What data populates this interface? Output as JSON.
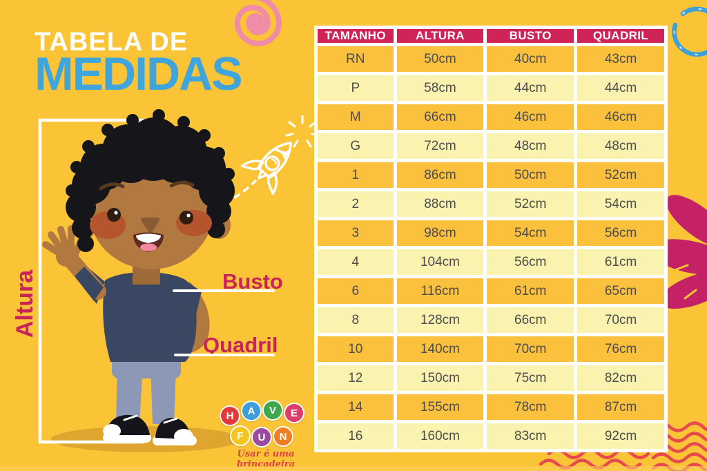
{
  "title": {
    "line1": "TABELA DE",
    "line2": "MEDIDAS"
  },
  "measure_labels": {
    "height": "Altura",
    "bust": "Busto",
    "hip": "Quadril"
  },
  "chart_data": {
    "type": "table",
    "title": "Tabela de Medidas",
    "columns": [
      "TAMANHO",
      "ALTURA",
      "BUSTO",
      "QUADRIL"
    ],
    "rows": [
      [
        "RN",
        "50cm",
        "40cm",
        "43cm"
      ],
      [
        "P",
        "58cm",
        "44cm",
        "44cm"
      ],
      [
        "M",
        "66cm",
        "46cm",
        "46cm"
      ],
      [
        "G",
        "72cm",
        "48cm",
        "48cm"
      ],
      [
        "1",
        "86cm",
        "50cm",
        "52cm"
      ],
      [
        "2",
        "88cm",
        "52cm",
        "54cm"
      ],
      [
        "3",
        "98cm",
        "54cm",
        "56cm"
      ],
      [
        "4",
        "104cm",
        "56cm",
        "61cm"
      ],
      [
        "6",
        "116cm",
        "61cm",
        "65cm"
      ],
      [
        "8",
        "128cm",
        "66cm",
        "70cm"
      ],
      [
        "10",
        "140cm",
        "70cm",
        "76cm"
      ],
      [
        "12",
        "150cm",
        "75cm",
        "82cm"
      ],
      [
        "14",
        "155cm",
        "78cm",
        "87cm"
      ],
      [
        "16",
        "160cm",
        "83cm",
        "92cm"
      ]
    ]
  },
  "logo": {
    "rows": [
      [
        {
          "letter": "H",
          "color": "#E23A3C"
        },
        {
          "letter": "A",
          "color": "#3E9CD9"
        },
        {
          "letter": "V",
          "color": "#3EA94A"
        },
        {
          "letter": "E",
          "color": "#DB3D6D"
        }
      ],
      [
        {
          "letter": "F",
          "color": "#F5C51E"
        },
        {
          "letter": "U",
          "color": "#9A4B9E"
        },
        {
          "letter": "N",
          "color": "#F07D23"
        }
      ]
    ],
    "tagline": "Usar é uma brincadeira"
  },
  "colors": {
    "background": "#FBC437",
    "table_header_bg": "#CE2458",
    "table_row_gold": "#FBC13C",
    "table_row_light": "#FAF3AF",
    "table_cell_text": "#4D4C4E",
    "title_blue": "#3FA5DC",
    "title_white": "#FFFFFF",
    "label_crimson": "#C9245A",
    "wave_red": "#E8494F",
    "spiral_pink": "#F18CA6",
    "doodle_blue": "#3F9FD8",
    "brush_magenta": "#C42167"
  },
  "decorations": [
    "spiral-doodle",
    "rocket-doodle",
    "sparkle-doodle",
    "circle-doodle",
    "brush-stroke-doodle",
    "waves-doodle",
    "boy-illustration",
    "measure-bracket"
  ]
}
